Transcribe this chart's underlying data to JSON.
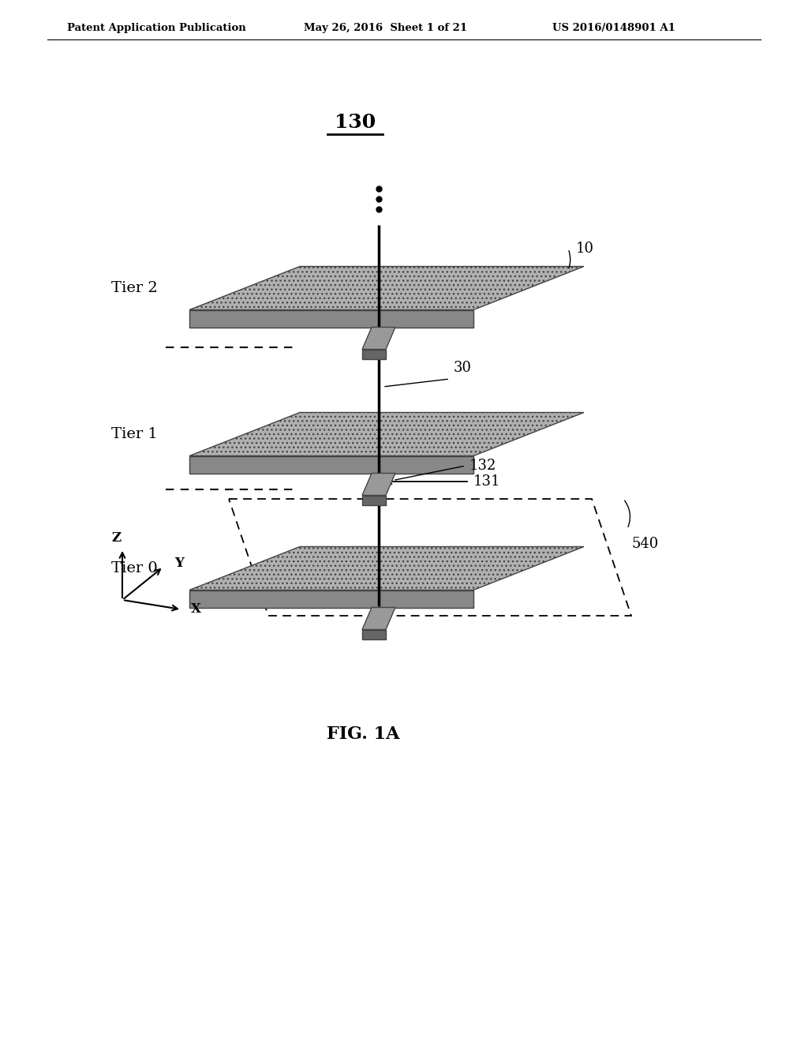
{
  "bg_color": "#ffffff",
  "header_left": "Patent Application Publication",
  "header_mid": "May 26, 2016  Sheet 1 of 21",
  "header_right": "US 2016/0148901 A1",
  "label_130": "130",
  "label_10": "10",
  "label_30": "30",
  "label_132": "132",
  "label_131": "131",
  "label_540": "540",
  "tier_labels": [
    "Tier 2",
    "Tier 1",
    "Tier 0"
  ],
  "fig_caption": "FIG. 1A",
  "slab_color": "#b0b0b0",
  "slab_side_color": "#888888",
  "slab_edge_color": "#444444",
  "connector_color": "#999999",
  "connector_side_color": "#666666",
  "connector_edge": "#444444",
  "vertical_line_color": "#000000"
}
